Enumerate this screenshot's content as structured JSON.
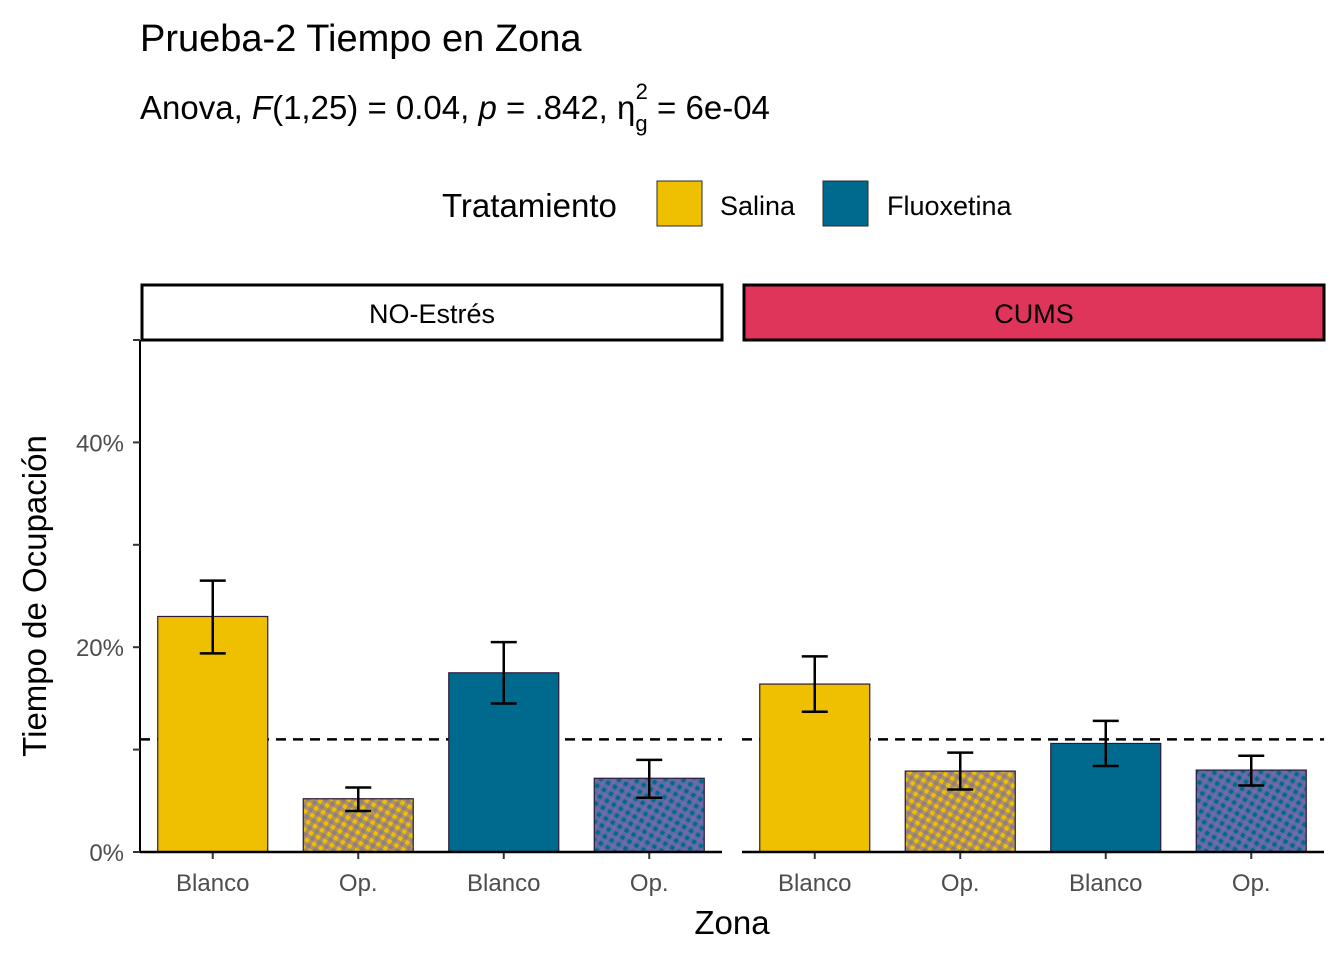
{
  "chart_data": {
    "type": "bar",
    "title": "Prueba-2 Tiempo en Zona",
    "subtitle": {
      "prefix": "Anova, ",
      "stat": "F",
      "df": "(1,25) = 0.04, ",
      "p_label": "p",
      "p_value": " = .842, ",
      "eta": "η",
      "eta_sub": "g",
      "eta_sup": "2",
      "eta_value": " = 6e-04"
    },
    "xlabel": "Zona",
    "ylabel": "Tiempo de Ocupación",
    "ylim": [
      0,
      50
    ],
    "yticks": [
      0,
      20,
      40
    ],
    "ytick_labels": [
      "0%",
      "20%",
      "40%"
    ],
    "reference_line": 11,
    "legend": {
      "title": "Tratamiento",
      "position": "top",
      "entries": [
        {
          "name": "Salina",
          "color": "#EFC000"
        },
        {
          "name": "Fluoxetina",
          "color": "#006A8E"
        }
      ]
    },
    "panels": [
      {
        "label": "NO-Estrés",
        "strip_color": "#FFFFFF",
        "categories": [
          "Blanco",
          "Op.",
          "Blanco",
          "Op."
        ],
        "treatment": [
          "Salina",
          "Salina",
          "Fluoxetina",
          "Fluoxetina"
        ],
        "patterned": [
          false,
          true,
          false,
          true
        ],
        "values": [
          23.0,
          5.2,
          17.5,
          7.2
        ],
        "error_low": [
          19.4,
          4.0,
          14.5,
          5.3
        ],
        "error_high": [
          26.5,
          6.3,
          20.5,
          9.0
        ]
      },
      {
        "label": "CUMS",
        "strip_color": "#E0355A",
        "categories": [
          "Blanco",
          "Op.",
          "Blanco",
          "Op."
        ],
        "treatment": [
          "Salina",
          "Salina",
          "Fluoxetina",
          "Fluoxetina"
        ],
        "patterned": [
          false,
          true,
          false,
          true
        ],
        "values": [
          16.4,
          7.9,
          10.6,
          8.0
        ],
        "error_low": [
          13.7,
          6.1,
          8.4,
          6.5
        ],
        "error_high": [
          19.1,
          9.7,
          12.8,
          9.4
        ]
      }
    ]
  }
}
